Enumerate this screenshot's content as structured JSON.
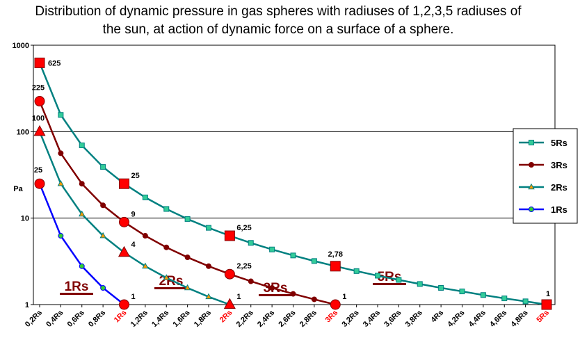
{
  "chart_data": {
    "type": "line",
    "title": "Distribution of dynamic pressure in gas spheres with radiuses of 1,2,3,5 radiuses of the sun, at action of dynamic force on a surface of a sphere.",
    "y_label": "Pa",
    "log_scale": true,
    "grid": true,
    "legend": "right",
    "ylim": [
      1,
      1000
    ],
    "yticks": [
      1,
      10,
      100,
      1000
    ],
    "categories": [
      "0,2Rs",
      "0,4Rs",
      "0,6Rs",
      "0,8Rs",
      "1Rs",
      "1,2Rs",
      "1,4Rs",
      "1,6Rs",
      "1,8Rs",
      "2Rs",
      "2,2Rs",
      "2,4Rs",
      "2,6Rs",
      "2,8Rs",
      "3Rs",
      "3,2Rs",
      "3,4Rs",
      "3,6Rs",
      "3,8Rs",
      "4Rs",
      "4,2Rs",
      "4,4Rs",
      "4,6Rs",
      "4,8Rs",
      "5Rs"
    ],
    "category_label_colors": [
      "#000",
      "#000",
      "#000",
      "#000",
      "#ff0000",
      "#000",
      "#000",
      "#000",
      "#000",
      "#ff0000",
      "#000",
      "#000",
      "#000",
      "#000",
      "#ff0000",
      "#000",
      "#000",
      "#000",
      "#000",
      "#000",
      "#000",
      "#000",
      "#000",
      "#000",
      "#ff0000"
    ],
    "annotations": [
      "1Rs",
      "2Rs",
      "3Rs",
      "5Rs"
    ],
    "annotation_color": "#800000",
    "highlight_color": "#ff0000",
    "series": [
      {
        "name": "5Rs",
        "color": "#008080",
        "marker": "square",
        "marker_color": "#33cc99",
        "values": [
          625,
          156.25,
          69.44,
          39.06,
          25,
          17.36,
          12.76,
          9.77,
          7.72,
          6.25,
          5.17,
          4.34,
          3.7,
          3.19,
          2.78,
          2.44,
          2.16,
          1.93,
          1.73,
          1.56,
          1.42,
          1.29,
          1.18,
          1.09,
          1
        ],
        "value_labels": [
          "625",
          null,
          null,
          null,
          "25",
          null,
          null,
          null,
          null,
          "6,25",
          null,
          null,
          null,
          null,
          "2,78",
          null,
          null,
          null,
          null,
          null,
          null,
          null,
          null,
          null,
          "1"
        ]
      },
      {
        "name": "3Rs",
        "color": "#800000",
        "marker": "circle",
        "marker_color": "#800000",
        "values": [
          225,
          56.25,
          25,
          14.06,
          9,
          6.25,
          4.59,
          3.52,
          2.78,
          2.25,
          1.86,
          1.56,
          1.33,
          1.15,
          1,
          null,
          null,
          null,
          null,
          null,
          null,
          null,
          null,
          null,
          null
        ],
        "value_labels": [
          "225",
          null,
          null,
          null,
          "9",
          null,
          null,
          null,
          null,
          "2,25",
          null,
          null,
          null,
          null,
          "1",
          null,
          null,
          null,
          null,
          null,
          null,
          null,
          null,
          null,
          null
        ]
      },
      {
        "name": "2Rs",
        "color": "#008080",
        "marker": "triangle",
        "marker_color": "#ff9900",
        "values": [
          100,
          25,
          11.11,
          6.25,
          4,
          2.78,
          2.04,
          1.56,
          1.23,
          1,
          null,
          null,
          null,
          null,
          null,
          null,
          null,
          null,
          null,
          null,
          null,
          null,
          null,
          null,
          null
        ],
        "value_labels": [
          "100",
          null,
          null,
          null,
          "4",
          null,
          null,
          null,
          null,
          "1",
          null,
          null,
          null,
          null,
          null,
          null,
          null,
          null,
          null,
          null,
          null,
          null,
          null,
          null,
          null
        ]
      },
      {
        "name": "1Rs",
        "color": "#0000ff",
        "marker": "circle",
        "marker_color": "#33cc33",
        "values": [
          25,
          6.25,
          2.78,
          1.56,
          1,
          null,
          null,
          null,
          null,
          null,
          null,
          null,
          null,
          null,
          null,
          null,
          null,
          null,
          null,
          null,
          null,
          null,
          null,
          null,
          null
        ],
        "value_labels": [
          "25",
          null,
          null,
          null,
          "1",
          null,
          null,
          null,
          null,
          null,
          null,
          null,
          null,
          null,
          null,
          null,
          null,
          null,
          null,
          null,
          null,
          null,
          null,
          null,
          null
        ]
      }
    ]
  }
}
